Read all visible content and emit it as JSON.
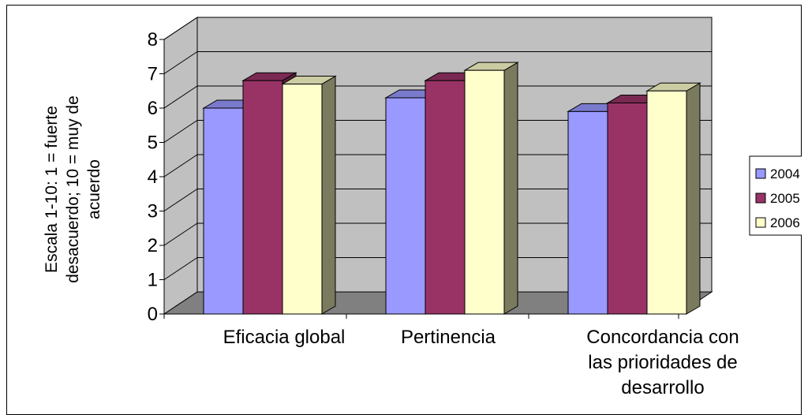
{
  "chart_data": {
    "type": "bar",
    "categories": [
      [
        "Eficacia global"
      ],
      [
        "Pertinencia"
      ],
      [
        "Concordancia con",
        "las prioridades de",
        "desarrollo"
      ]
    ],
    "series": [
      {
        "name": "2004",
        "values": [
          6.0,
          6.3,
          5.9
        ]
      },
      {
        "name": "2005",
        "values": [
          6.8,
          6.8,
          6.15
        ]
      },
      {
        "name": "2006",
        "values": [
          6.7,
          7.1,
          6.5
        ]
      }
    ],
    "ylabel": [
      "Escala 1-10: 1 = fuerte",
      "desacuerdo; 10 = muy de",
      "acuerdo"
    ],
    "ylim": [
      0,
      8
    ],
    "yticks": [
      "0",
      "1",
      "2",
      "3",
      "4",
      "5",
      "6",
      "7",
      "8"
    ],
    "grid": true,
    "legend_position": "right",
    "legend_labels": [
      "2004",
      "2005",
      "2006"
    ],
    "colors": {
      "front": [
        "#9999ff",
        "#993366",
        "#ffffcc"
      ],
      "side": [
        "#5b5b99",
        "#5c1f3d",
        "#7a7a5e"
      ],
      "top": [
        "#7a7acc",
        "#7a2952",
        "#cccca3"
      ],
      "wall": "#c0c0c0",
      "floor": "#808080"
    }
  }
}
